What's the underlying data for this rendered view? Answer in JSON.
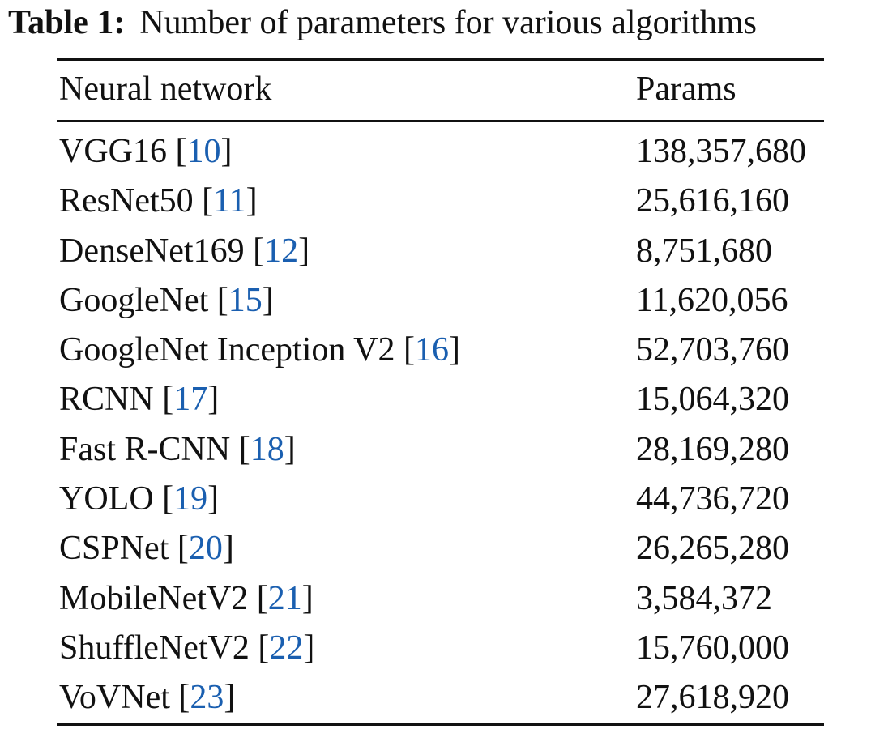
{
  "caption": {
    "label": "Table 1:",
    "text": "Number of parameters for various algorithms"
  },
  "columns": [
    "Neural network",
    "Params"
  ],
  "rows": [
    {
      "network": "VGG16",
      "ref": "10",
      "params": "138,357,680"
    },
    {
      "network": "ResNet50",
      "ref": "11",
      "params": "25,616,160"
    },
    {
      "network": "DenseNet169",
      "ref": "12",
      "params": "8,751,680"
    },
    {
      "network": "GoogleNet",
      "ref": "15",
      "params": "11,620,056"
    },
    {
      "network": "GoogleNet Inception V2",
      "ref": "16",
      "params": "52,703,760"
    },
    {
      "network": "RCNN",
      "ref": "17",
      "params": "15,064,320"
    },
    {
      "network": "Fast R-CNN",
      "ref": "18",
      "params": "28,169,280"
    },
    {
      "network": "YOLO",
      "ref": "19",
      "params": "44,736,720"
    },
    {
      "network": "CSPNet",
      "ref": "20",
      "params": "26,265,280"
    },
    {
      "network": "MobileNetV2",
      "ref": "21",
      "params": "3,584,372"
    },
    {
      "network": "ShuffleNetV2",
      "ref": "22",
      "params": "15,760,000"
    },
    {
      "network": "VoVNet",
      "ref": "23",
      "params": "27,618,920"
    }
  ],
  "colors": {
    "text": "#111111",
    "citation": "#1a5fb0"
  }
}
